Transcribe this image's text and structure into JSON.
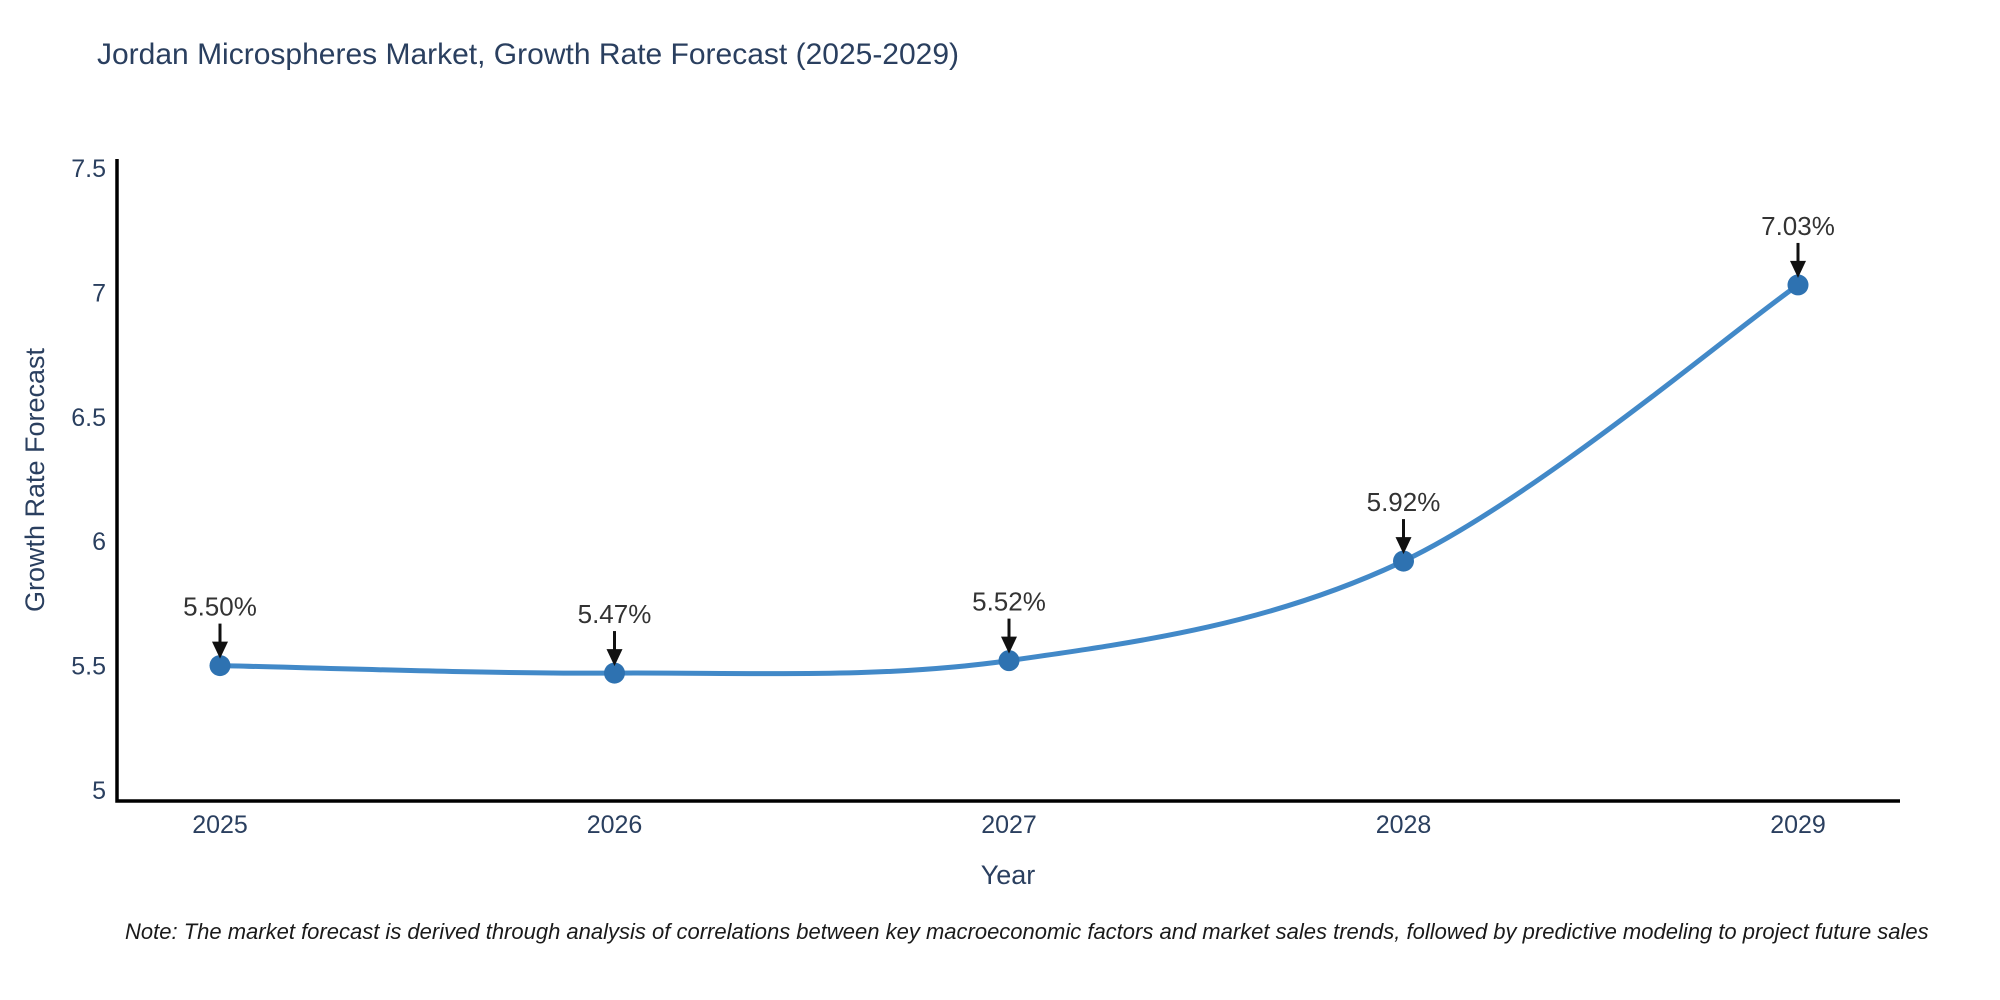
{
  "title": "Jordan Microspheres Market, Growth Rate Forecast (2025-2029)",
  "note": "Note: The market forecast is derived through analysis of correlations between key macroeconomic factors and market sales trends, followed by predictive modeling to project future sales",
  "chart_data": {
    "type": "line",
    "title": "Jordan Microspheres Market, Growth Rate Forecast (2025-2029)",
    "xlabel": "Year",
    "ylabel": "Growth Rate Forecast",
    "x": [
      2025,
      2026,
      2027,
      2028,
      2029
    ],
    "xticks": [
      "2025",
      "2026",
      "2027",
      "2028",
      "2029"
    ],
    "series": [
      {
        "name": "Growth Rate Forecast",
        "values": [
          5.5,
          5.47,
          5.52,
          5.92,
          7.03
        ]
      }
    ],
    "point_labels": [
      "5.50%",
      "5.47%",
      "5.52%",
      "5.92%",
      "7.03%"
    ],
    "ylim": [
      5,
      7.5
    ],
    "yticks": [
      5,
      5.5,
      6,
      6.5,
      7,
      7.5
    ],
    "grid": false,
    "legend_position": "none",
    "line_shape": "spline",
    "colors": {
      "line": "#4289c8",
      "marker": "#2e72b1",
      "annotation_text": "#333333",
      "arrow": "#111111",
      "axis": "#000000",
      "tick": "#2a3f5f",
      "title": "#2a3f5f"
    }
  }
}
